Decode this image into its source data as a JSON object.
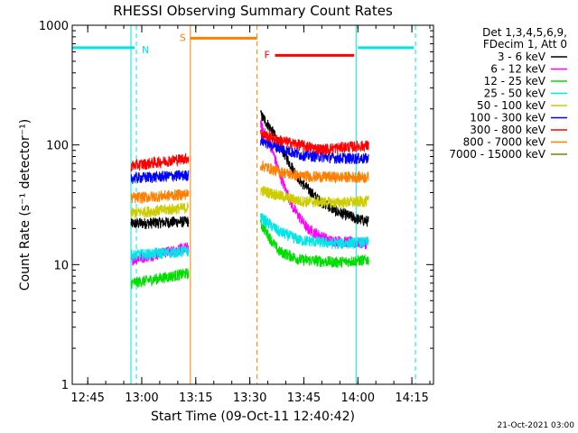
{
  "chart_data": {
    "type": "line",
    "title": "RHESSI Observing Summary Count Rates",
    "xlabel": "Start Time (09-Oct-11 12:40:42)",
    "ylabel": "Count Rate (s⁻¹ detector⁻¹)",
    "y_scale": "log",
    "ylim": [
      1,
      1000
    ],
    "xlim": [
      "12:40:42",
      "14:21:00"
    ],
    "x_ticks": [
      "12:45",
      "13:00",
      "13:15",
      "13:30",
      "13:45",
      "14:00",
      "14:15"
    ],
    "y_ticks": [
      "1",
      "10",
      "100",
      "1000"
    ],
    "legend_header": [
      "Det 1,3,4,5,6,9,",
      "FDecim 1, Att 0"
    ],
    "legend_position": "top-right",
    "footer": "21-Oct-2021 03:00",
    "flag_bars": [
      {
        "label": "N",
        "color": "#00e5e5",
        "segments": [
          [
            "12:40:42",
            "12:58:00"
          ],
          [
            "14:00:00",
            "14:15:30"
          ]
        ],
        "level": 650,
        "dashes": [
          "12:58:30",
          "14:16:00"
        ],
        "edges": [
          "12:57:00",
          "13:59:30"
        ]
      },
      {
        "label": "S",
        "color": "#ff8000",
        "segments": [
          [
            "13:13:30",
            "13:32:00"
          ]
        ],
        "level": 780,
        "dashes": [
          "13:32:00"
        ],
        "edges": [
          "13:13:30"
        ]
      },
      {
        "label": "F",
        "color": "#ff0000",
        "segments": [
          [
            "13:37:00",
            "13:59:00"
          ]
        ],
        "level": 560,
        "dashes": [],
        "edges": []
      }
    ],
    "series": [
      {
        "name": "3 - 6 keV",
        "color": "#000000",
        "seg1": [
          [
            "12:57:00",
            22
          ],
          [
            "13:13:00",
            23
          ]
        ],
        "seg2": [
          [
            "13:33:00",
            180
          ],
          [
            "13:36:00",
            135
          ],
          [
            "13:40:00",
            80
          ],
          [
            "13:44:00",
            50
          ],
          [
            "13:49:00",
            35
          ],
          [
            "13:54:00",
            28
          ],
          [
            "14:00:00",
            24
          ],
          [
            "14:03:00",
            23
          ]
        ]
      },
      {
        "name": "6 - 12 keV",
        "color": "#ff00ff",
        "seg1": [
          [
            "12:57:00",
            11
          ],
          [
            "13:13:00",
            14
          ]
        ],
        "seg2": [
          [
            "13:33:00",
            150
          ],
          [
            "13:36:00",
            95
          ],
          [
            "13:39:00",
            50
          ],
          [
            "13:42:00",
            30
          ],
          [
            "13:46:00",
            20
          ],
          [
            "13:52:00",
            16
          ],
          [
            "14:03:00",
            15
          ]
        ]
      },
      {
        "name": "12 - 25 keV",
        "color": "#00dd00",
        "seg1": [
          [
            "12:57:00",
            7
          ],
          [
            "13:13:00",
            8.5
          ]
        ],
        "seg2": [
          [
            "13:33:00",
            22
          ],
          [
            "13:38:00",
            13
          ],
          [
            "13:44:00",
            11
          ],
          [
            "13:54:00",
            10.5
          ],
          [
            "14:03:00",
            11
          ]
        ]
      },
      {
        "name": "25 - 50 keV",
        "color": "#00e5e5",
        "seg1": [
          [
            "12:57:00",
            12
          ],
          [
            "13:13:00",
            13
          ]
        ],
        "seg2": [
          [
            "13:33:00",
            25
          ],
          [
            "13:38:00",
            19
          ],
          [
            "13:44:00",
            16
          ],
          [
            "13:54:00",
            15
          ],
          [
            "14:03:00",
            15.5
          ]
        ]
      },
      {
        "name": "50 - 100 keV",
        "color": "#cccc00",
        "seg1": [
          [
            "12:57:00",
            27
          ],
          [
            "13:13:00",
            30
          ]
        ],
        "seg2": [
          [
            "13:33:00",
            42
          ],
          [
            "13:38:00",
            38
          ],
          [
            "13:44:00",
            34
          ],
          [
            "13:54:00",
            33
          ],
          [
            "14:03:00",
            34
          ]
        ]
      },
      {
        "name": "100 - 300 keV",
        "color": "#0000ff",
        "seg1": [
          [
            "12:57:00",
            53
          ],
          [
            "13:13:00",
            56
          ]
        ],
        "seg2": [
          [
            "13:33:00",
            110
          ],
          [
            "13:38:00",
            95
          ],
          [
            "13:44:00",
            83
          ],
          [
            "13:54:00",
            78
          ],
          [
            "14:03:00",
            77
          ]
        ]
      },
      {
        "name": "300 - 800 keV",
        "color": "#ff0000",
        "seg1": [
          [
            "12:57:00",
            67
          ],
          [
            "13:13:00",
            78
          ]
        ],
        "seg2": [
          [
            "13:33:00",
            125
          ],
          [
            "13:38:00",
            110
          ],
          [
            "13:44:00",
            100
          ],
          [
            "13:50:00",
            92
          ],
          [
            "13:56:00",
            96
          ],
          [
            "14:03:00",
            99
          ]
        ]
      },
      {
        "name": "800 - 7000 keV",
        "color": "#ff8000",
        "seg1": [
          [
            "12:57:00",
            36
          ],
          [
            "13:13:00",
            39
          ]
        ],
        "seg2": [
          [
            "13:33:00",
            68
          ],
          [
            "13:38:00",
            60
          ],
          [
            "13:44:00",
            55
          ],
          [
            "13:54:00",
            54
          ],
          [
            "14:03:00",
            54
          ]
        ]
      },
      {
        "name": "7000 - 15000 keV",
        "color": "#808000",
        "seg1": [],
        "seg2": []
      }
    ]
  }
}
